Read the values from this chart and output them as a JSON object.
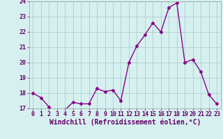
{
  "x": [
    0,
    1,
    2,
    3,
    4,
    5,
    6,
    7,
    8,
    9,
    10,
    11,
    12,
    13,
    14,
    15,
    16,
    17,
    18,
    19,
    20,
    21,
    22,
    23
  ],
  "y": [
    18.0,
    17.7,
    17.1,
    16.6,
    16.9,
    17.4,
    17.3,
    17.3,
    18.3,
    18.1,
    18.2,
    17.5,
    20.0,
    21.1,
    21.8,
    22.6,
    22.0,
    23.6,
    23.9,
    20.0,
    20.2,
    19.4,
    17.9,
    17.3
  ],
  "line_color": "#880088",
  "marker": "D",
  "marker_size": 2.5,
  "bg_color": "#d6f0f0",
  "grid_color": "#aacece",
  "xlabel": "Windchill (Refroidissement éolien,°C)",
  "ylim": [
    17,
    24
  ],
  "xlim": [
    -0.5,
    23.5
  ],
  "yticks": [
    17,
    18,
    19,
    20,
    21,
    22,
    23,
    24
  ],
  "xticks": [
    0,
    1,
    2,
    3,
    4,
    5,
    6,
    7,
    8,
    9,
    10,
    11,
    12,
    13,
    14,
    15,
    16,
    17,
    18,
    19,
    20,
    21,
    22,
    23
  ],
  "tick_fontsize": 6,
  "xlabel_fontsize": 7,
  "line_width": 1.0,
  "label_color": "#660066"
}
